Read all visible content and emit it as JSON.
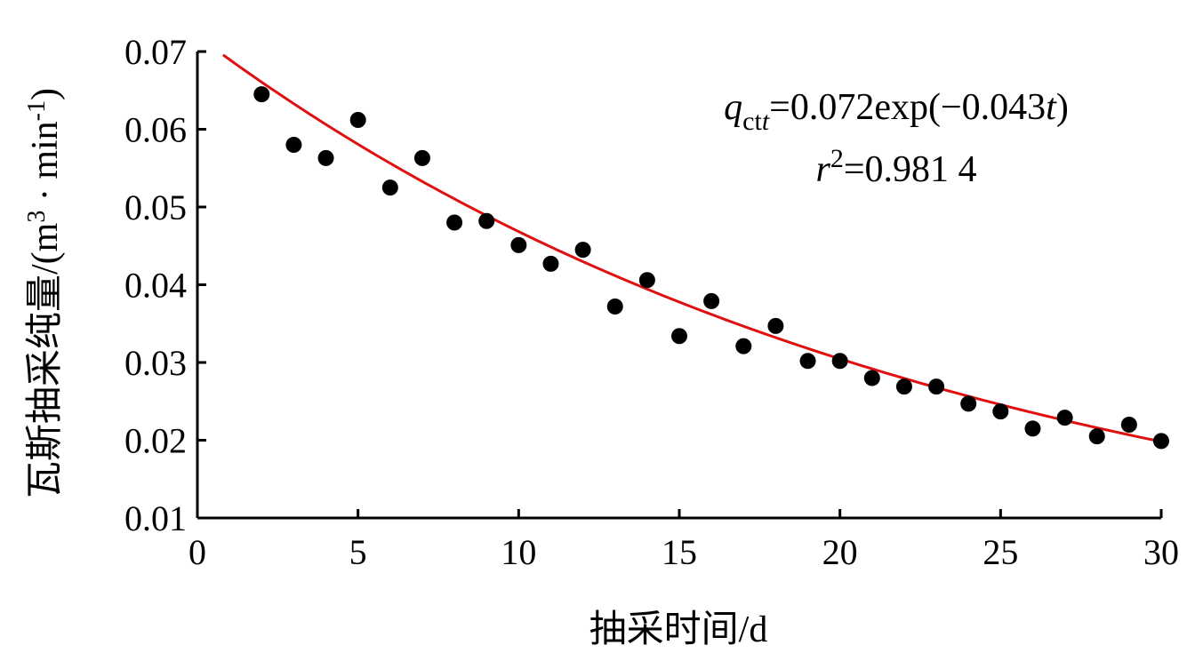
{
  "chart_data": {
    "type": "scatter",
    "xlabel": "抽采时间/d",
    "ylabel": "瓦斯抽采纯量/(m³ · min⁻¹)",
    "ylabel_main": "瓦斯抽采纯量/(m",
    "ylabel_sup1": "3",
    "ylabel_mid": " · min",
    "ylabel_sup2": "-1",
    "ylabel_end": ")",
    "xlim": [
      0,
      30
    ],
    "ylim": [
      0.01,
      0.07
    ],
    "xticks": [
      "0",
      "5",
      "10",
      "15",
      "20",
      "25",
      "30"
    ],
    "yticks": [
      "0.01",
      "0.02",
      "0.03",
      "0.04",
      "0.05",
      "0.06",
      "0.07"
    ],
    "grid": false,
    "point_color": "#000000",
    "fit_color": "#e01010",
    "series": [
      {
        "type": "scatter",
        "x": [
          2,
          3,
          4,
          5,
          6,
          7,
          8,
          9,
          10,
          11,
          12,
          13,
          14,
          15,
          16,
          17,
          18,
          19,
          20,
          21,
          22,
          23,
          24,
          25,
          26,
          27,
          28,
          29,
          30
        ],
        "y": [
          0.0645,
          0.058,
          0.0563,
          0.0612,
          0.0525,
          0.0563,
          0.048,
          0.0482,
          0.0451,
          0.0427,
          0.0445,
          0.0372,
          0.0406,
          0.0334,
          0.0379,
          0.0321,
          0.0347,
          0.0302,
          0.0302,
          0.028,
          0.0269,
          0.0269,
          0.0247,
          0.0237,
          0.0215,
          0.0229,
          0.0205,
          0.022,
          0.0199
        ]
      },
      {
        "type": "line",
        "fit": "exponential",
        "x_range": [
          0.8,
          30
        ],
        "a": 0.072,
        "b": -0.043
      }
    ],
    "annotation": {
      "eq_q": "q",
      "eq_sub": "ct",
      "eq_sub_t": "t",
      "eq_rest_a": "=0.072exp(−0.043",
      "eq_rest_t": "t",
      "eq_rest_b": ")",
      "r_r": "r",
      "r_sup": "2",
      "r_rest": "=0.981 4"
    }
  }
}
